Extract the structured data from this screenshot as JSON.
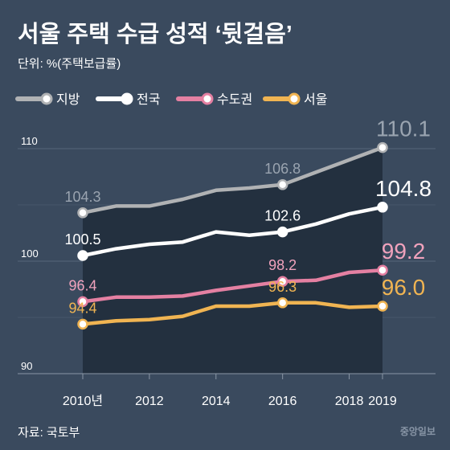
{
  "header": {
    "title": "서울 주택 수급 성적 ‘뒷걸음’",
    "subtitle": "단위: %(주택보급률)"
  },
  "footer": {
    "source": "자료: 국토부",
    "credit": "중앙일보"
  },
  "chart_data": {
    "type": "line",
    "x": [
      2010,
      2011,
      2012,
      2013,
      2014,
      2015,
      2016,
      2017,
      2018,
      2019
    ],
    "xticks": [
      "2010년",
      "2012",
      "2014",
      "2016",
      "2018",
      "2019"
    ],
    "xtick_values": [
      2010,
      2012,
      2014,
      2016,
      2018,
      2019
    ],
    "ylim": [
      90,
      111
    ],
    "yticks": [
      90,
      100,
      110
    ],
    "grid": true,
    "legend_position": "top-left",
    "series": [
      {
        "name": "지방",
        "color": "#b0b2b4",
        "label_color": "#9aa4b0",
        "values": [
          104.3,
          104.9,
          104.9,
          105.5,
          106.3,
          106.5,
          106.8,
          107.9,
          109.0,
          110.1
        ],
        "labels": [
          {
            "index": 0,
            "text": "104.3",
            "size": "small"
          },
          {
            "index": 6,
            "text": "106.8",
            "size": "small"
          },
          {
            "index": 9,
            "text": "110.1",
            "size": "large"
          }
        ]
      },
      {
        "name": "전국",
        "color": "#ffffff",
        "label_color": "#ffffff",
        "values": [
          100.5,
          101.1,
          101.5,
          101.7,
          102.6,
          102.3,
          102.6,
          103.3,
          104.2,
          104.8
        ],
        "labels": [
          {
            "index": 0,
            "text": "100.5",
            "size": "small"
          },
          {
            "index": 6,
            "text": "102.6",
            "size": "small"
          },
          {
            "index": 9,
            "text": "104.8",
            "size": "large"
          }
        ]
      },
      {
        "name": "수도권",
        "color": "#e480a2",
        "label_color": "#f0a2bc",
        "values": [
          96.4,
          96.8,
          96.8,
          96.9,
          97.4,
          97.8,
          98.2,
          98.3,
          99.0,
          99.2
        ],
        "labels": [
          {
            "index": 0,
            "text": "96.4",
            "size": "small"
          },
          {
            "index": 6,
            "text": "98.2",
            "size": "small"
          },
          {
            "index": 9,
            "text": "99.2",
            "size": "large"
          }
        ]
      },
      {
        "name": "서울",
        "color": "#f0b452",
        "label_color": "#f0b452",
        "values": [
          94.4,
          94.7,
          94.8,
          95.1,
          96.0,
          96.0,
          96.3,
          96.3,
          95.9,
          96.0
        ],
        "labels": [
          {
            "index": 0,
            "text": "94.4",
            "size": "small"
          },
          {
            "index": 6,
            "text": "96.3",
            "size": "small"
          },
          {
            "index": 9,
            "text": "96.0",
            "size": "large"
          }
        ]
      }
    ]
  }
}
